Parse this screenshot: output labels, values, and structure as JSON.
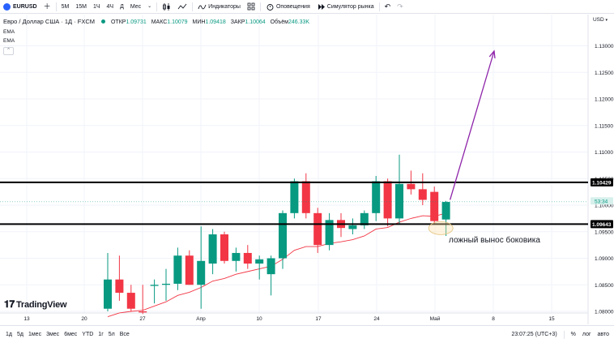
{
  "toolbar": {
    "symbol": "EURUSD",
    "timeframes": [
      "5М",
      "15М",
      "1Ч",
      "4Ч",
      "Д",
      "Мес"
    ],
    "indicators_label": "Индикаторы",
    "alerts_label": "Оповещения",
    "replay_label": "Симулятор рынка"
  },
  "legend": {
    "title": "Евро / Доллар США · 1Д · FXCM",
    "ohlc": [
      {
        "label": "ОТКР",
        "value": "1.09731"
      },
      {
        "label": "МАКС",
        "value": "1.10079"
      },
      {
        "label": "МИН",
        "value": "1.09418"
      },
      {
        "label": "ЗАКР",
        "value": "1.10064"
      }
    ],
    "volume_label": "Объём",
    "volume_value": "246.33K",
    "ema_1": "EMA",
    "ema_2": "EMA"
  },
  "currency": "USD",
  "chart_data": {
    "type": "candlestick",
    "y_ticks": [
      "1.13000",
      "1.12500",
      "1.12000",
      "1.11500",
      "1.11000",
      "1.10500",
      "1.10000",
      "1.09500",
      "1.09000",
      "1.08500",
      "1.08000"
    ],
    "x_ticks": [
      "13",
      "20",
      "27",
      "Апр",
      "10",
      "17",
      "24",
      "Май",
      "8",
      "15"
    ],
    "resistance_label": "1.10429",
    "support_label": "1.09643",
    "countdown_label": "53:34",
    "candles": [
      {
        "o": 1.0805,
        "h": 1.091,
        "l": 1.08,
        "c": 1.086
      },
      {
        "o": 1.086,
        "h": 1.0905,
        "l": 1.082,
        "c": 1.0835
      },
      {
        "o": 1.0835,
        "h": 1.085,
        "l": 1.08,
        "c": 1.0805
      },
      {
        "o": 1.08,
        "h": 1.085,
        "l": 1.0795,
        "c": 1.0798
      },
      {
        "o": 1.0848,
        "h": 1.086,
        "l": 1.0815,
        "c": 1.085
      },
      {
        "o": 1.085,
        "h": 1.088,
        "l": 1.082,
        "c": 1.0852
      },
      {
        "o": 1.0852,
        "h": 1.092,
        "l": 1.084,
        "c": 1.0905
      },
      {
        "o": 1.0905,
        "h": 1.0915,
        "l": 1.085,
        "c": 1.085
      },
      {
        "o": 1.085,
        "h": 1.096,
        "l": 1.0805,
        "c": 1.0895
      },
      {
        "o": 1.089,
        "h": 1.0955,
        "l": 1.087,
        "c": 1.0945
      },
      {
        "o": 1.0945,
        "h": 1.095,
        "l": 1.089,
        "c": 1.0895
      },
      {
        "o": 1.0895,
        "h": 1.092,
        "l": 1.0875,
        "c": 1.091
      },
      {
        "o": 1.091,
        "h": 1.0925,
        "l": 1.088,
        "c": 1.089
      },
      {
        "o": 1.089,
        "h": 1.0905,
        "l": 1.086,
        "c": 1.0898
      },
      {
        "o": 1.087,
        "h": 1.0905,
        "l": 1.083,
        "c": 1.09
      },
      {
        "o": 1.09,
        "h": 1.099,
        "l": 1.088,
        "c": 1.0985
      },
      {
        "o": 1.0985,
        "h": 1.105,
        "l": 1.0975,
        "c": 1.1045
      },
      {
        "o": 1.1045,
        "h": 1.106,
        "l": 1.0975,
        "c": 1.0985
      },
      {
        "o": 1.0985,
        "h": 1.0995,
        "l": 1.091,
        "c": 1.0925
      },
      {
        "o": 1.0925,
        "h": 1.0985,
        "l": 1.0915,
        "c": 1.0972
      },
      {
        "o": 1.0972,
        "h": 1.0985,
        "l": 1.094,
        "c": 1.0957
      },
      {
        "o": 1.0955,
        "h": 1.0975,
        "l": 1.0945,
        "c": 1.0962
      },
      {
        "o": 1.0962,
        "h": 1.099,
        "l": 1.0955,
        "c": 1.0985
      },
      {
        "o": 1.0985,
        "h": 1.1055,
        "l": 1.097,
        "c": 1.1045
      },
      {
        "o": 1.1045,
        "h": 1.105,
        "l": 1.096,
        "c": 1.0975
      },
      {
        "o": 1.0975,
        "h": 1.1095,
        "l": 1.0965,
        "c": 1.104
      },
      {
        "o": 1.104,
        "h": 1.1065,
        "l": 1.102,
        "c": 1.103
      },
      {
        "o": 1.103,
        "h": 1.106,
        "l": 1.1,
        "c": 1.101
      },
      {
        "o": 1.1025,
        "h": 1.1035,
        "l": 1.0965,
        "c": 1.097
      },
      {
        "o": 1.0973,
        "h": 1.1008,
        "l": 1.0942,
        "c": 1.1006
      }
    ],
    "ema": [
      1.079,
      1.0797,
      1.08,
      1.0802,
      1.081,
      1.0818,
      1.083,
      1.0836,
      1.0845,
      1.0857,
      1.0862,
      1.087,
      1.0875,
      1.088,
      1.0885,
      1.0898,
      1.0915,
      1.0922,
      1.0922,
      1.0928,
      1.0931,
      1.0935,
      1.0942,
      1.0955,
      1.0958,
      1.0968,
      1.0975,
      1.098,
      1.0979,
      1.0985
    ],
    "last_price": 1.10064,
    "resistance": 1.10429,
    "support": 1.09643,
    "colors": {
      "up": "#089981",
      "down": "#f23645",
      "ema": "#f23645",
      "arrow": "#8e24aa",
      "grid": "#f0f3fa"
    }
  },
  "annotation": "ложный вынос боковика",
  "tv_logo": "TradingView",
  "bottom": {
    "ranges": [
      "1д",
      "5д",
      "1мес",
      "3мес",
      "6мес",
      "YTD",
      "1г",
      "5л",
      "Все"
    ],
    "time": "23:07:25 (UTC+3)",
    "percent": "%",
    "log": "лог",
    "auto": "авто"
  }
}
